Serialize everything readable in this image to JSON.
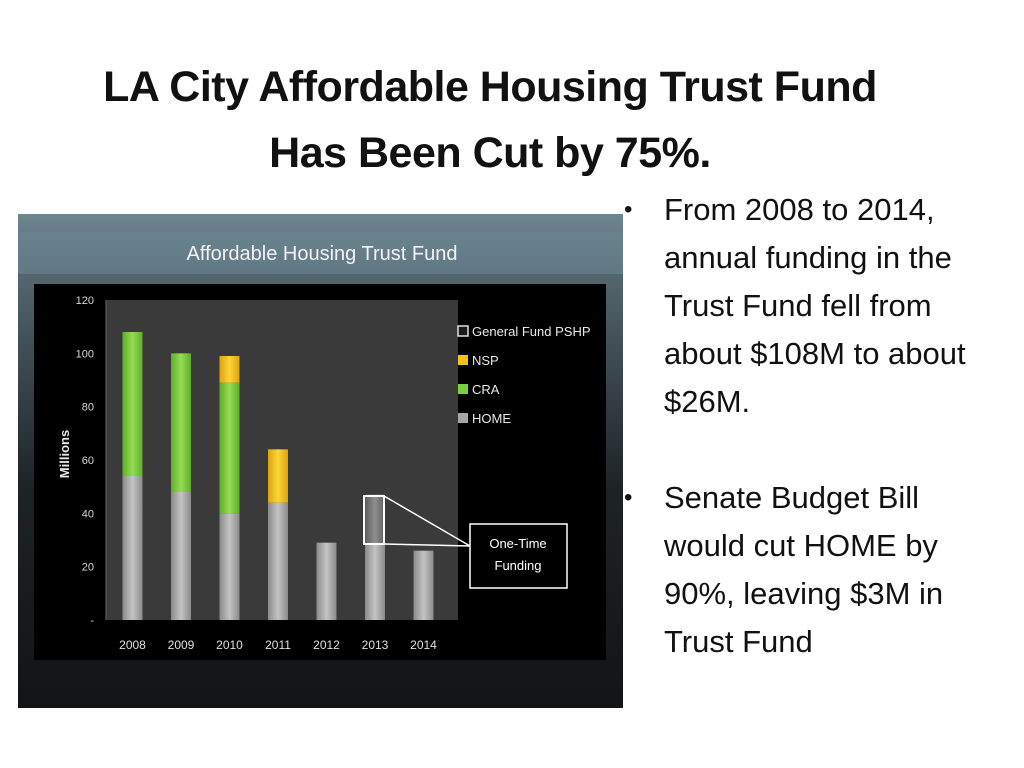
{
  "slide": {
    "title_line1": "LA City Affordable Housing Trust Fund",
    "title_line2": "Has Been Cut by 75%.",
    "bullets": [
      "From 2008 to 2014, annual funding in the Trust Fund fell from about $108M to about $26M.",
      "Senate Budget Bill would cut HOME by 90%, leaving $3M in Trust Fund"
    ]
  },
  "chart_data": {
    "type": "bar",
    "stacked": true,
    "title": "Affordable Housing Trust Fund",
    "xlabel": "",
    "ylabel": "Millions",
    "ylim": [
      0,
      120
    ],
    "yticks": [
      "-",
      "20",
      "40",
      "60",
      "80",
      "100",
      "120"
    ],
    "categories": [
      "2008",
      "2009",
      "2010",
      "2011",
      "2012",
      "2013",
      "2014"
    ],
    "series": [
      {
        "name": "HOME",
        "values": [
          54,
          48,
          40,
          44,
          29,
          29,
          26
        ],
        "color": "#a6a6a6"
      },
      {
        "name": "CRA",
        "values": [
          54,
          52,
          49,
          0,
          0,
          0,
          0
        ],
        "color": "#7ccf3c"
      },
      {
        "name": "NSP",
        "values": [
          0,
          0,
          10,
          20,
          0,
          0,
          0
        ],
        "color": "#f2c21b"
      },
      {
        "name": "General Fund PSHP",
        "values": [
          0,
          0,
          0,
          0,
          0,
          18,
          0
        ],
        "color": "#7a7a7a"
      }
    ],
    "legend_order": [
      "General Fund PSHP",
      "NSP",
      "CRA",
      "HOME"
    ],
    "legend_position": "top-right",
    "annotation": {
      "text_line1": "One-Time",
      "text_line2": "Funding",
      "target": "2013"
    },
    "grid": false
  }
}
